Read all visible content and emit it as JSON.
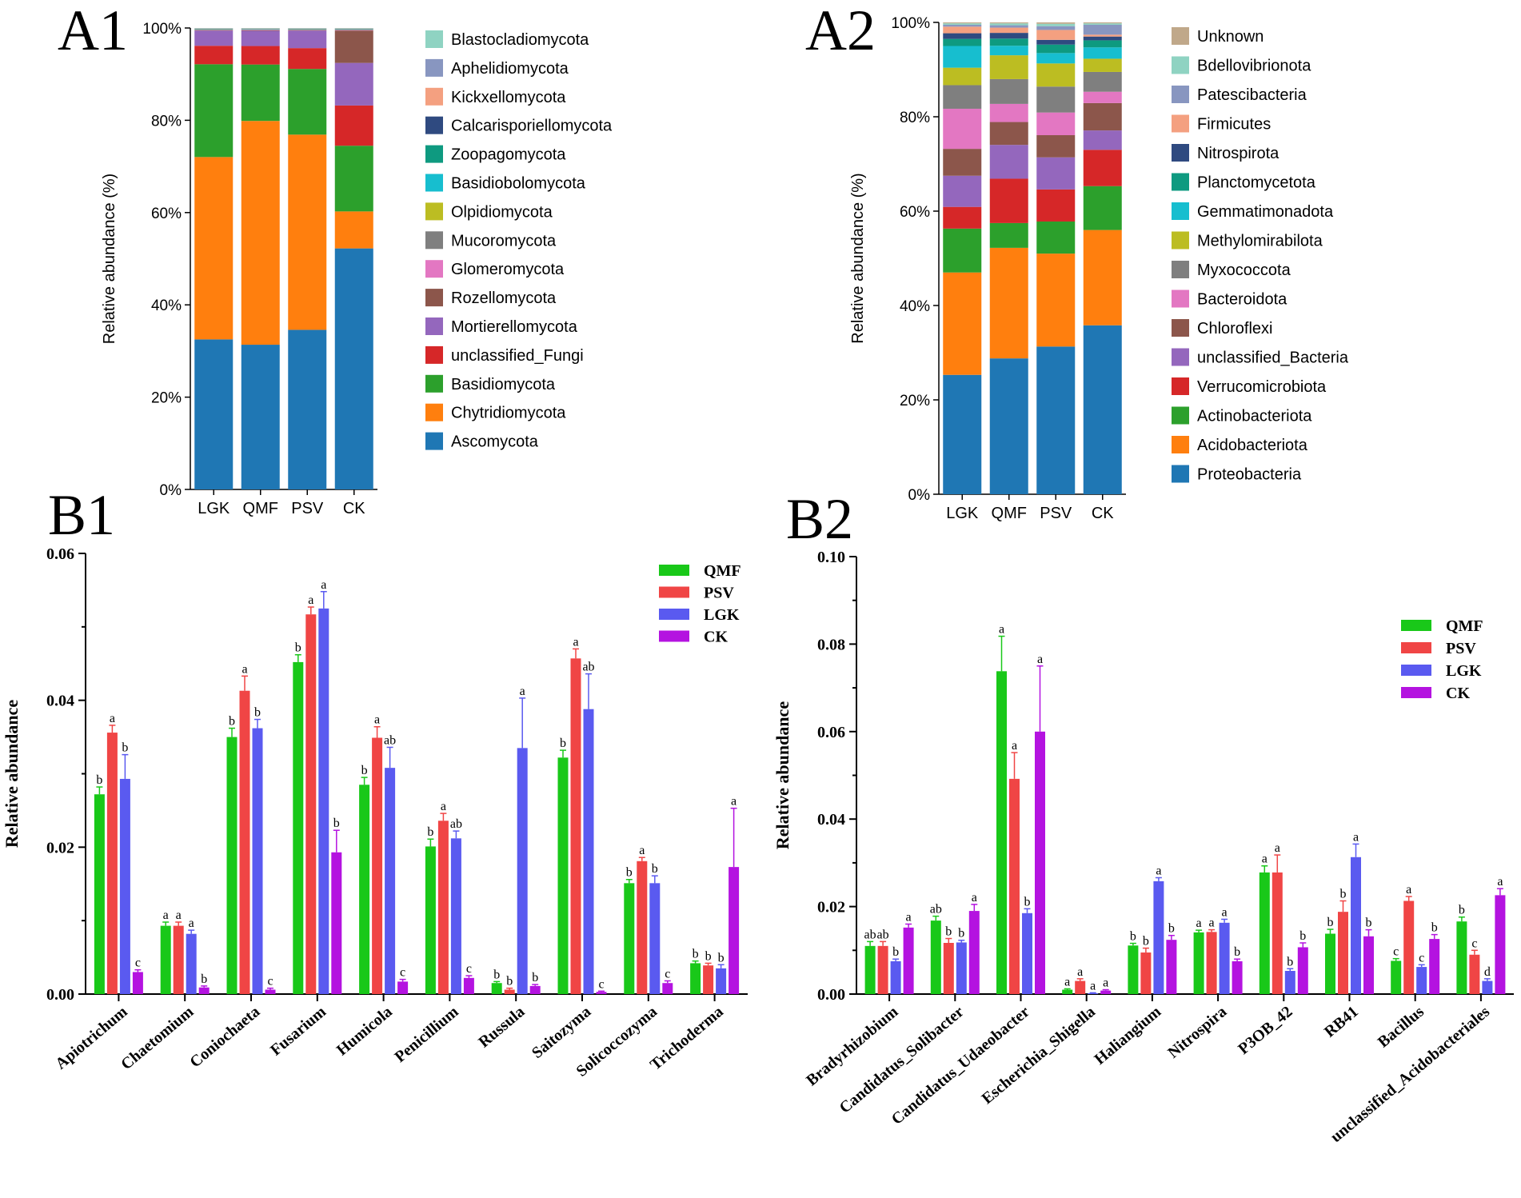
{
  "chart_data": [
    {
      "id": "A1",
      "panel_label": "A1",
      "type": "bar",
      "stacked": true,
      "percent": true,
      "categories": [
        "LGK",
        "QMF",
        "PSV",
        "CK"
      ],
      "ylabel": "Relative abundance (%)",
      "yticks": [
        "0%",
        "20%",
        "40%",
        "60%",
        "80%",
        "100%"
      ],
      "ylim": [
        0,
        100
      ],
      "series": [
        {
          "name": "Ascomycota",
          "color": "#1f77b4",
          "values": [
            32.5,
            31.3,
            34.5,
            52.1
          ]
        },
        {
          "name": "Chytridiomycota",
          "color": "#ff7f0e",
          "values": [
            39.5,
            48.4,
            42.2,
            8.0
          ]
        },
        {
          "name": "Basidiomycota",
          "color": "#2ca02c",
          "values": [
            20.1,
            12.2,
            14.2,
            14.2
          ]
        },
        {
          "name": "unclassified_Fungi",
          "color": "#d62728",
          "values": [
            4.0,
            4.0,
            4.5,
            8.7
          ]
        },
        {
          "name": "Mortierellomycota",
          "color": "#9467bd",
          "values": [
            3.3,
            3.3,
            3.8,
            9.2
          ]
        },
        {
          "name": "Rozellomycota",
          "color": "#8c564b",
          "values": [
            0.1,
            0.1,
            0.1,
            7.0
          ]
        },
        {
          "name": "Glomeromycota",
          "color": "#e377c2",
          "values": [
            0.05,
            0.1,
            0.05,
            0.1
          ]
        },
        {
          "name": "Mucoromycota",
          "color": "#7f7f7f",
          "values": [
            0.05,
            0.05,
            0.05,
            0.1
          ]
        },
        {
          "name": "Olpidiomycota",
          "color": "#bcbd22",
          "values": [
            0.05,
            0.05,
            0.05,
            0.05
          ]
        },
        {
          "name": "Basidiobolomycota",
          "color": "#17becf",
          "values": [
            0.05,
            0.05,
            0.05,
            0.05
          ]
        },
        {
          "name": "Zoopagomycota",
          "color": "#0e9a80",
          "values": [
            0.05,
            0.05,
            0.05,
            0.05
          ]
        },
        {
          "name": "Calcarisporiellomycota",
          "color": "#2f4a80",
          "values": [
            0.05,
            0.05,
            0.05,
            0.05
          ]
        },
        {
          "name": "Kickxellomycota",
          "color": "#f4a080",
          "values": [
            0.05,
            0.05,
            0.05,
            0.05
          ]
        },
        {
          "name": "Aphelidiomycota",
          "color": "#8896c0",
          "values": [
            0.05,
            0.05,
            0.05,
            0.05
          ]
        },
        {
          "name": "Blastocladiomycota",
          "color": "#8fd3c2",
          "values": [
            0.05,
            0.05,
            0.05,
            0.05
          ]
        }
      ]
    },
    {
      "id": "A2",
      "panel_label": "A2",
      "type": "bar",
      "stacked": true,
      "percent": true,
      "categories": [
        "LGK",
        "QMF",
        "PSV",
        "CK"
      ],
      "ylabel": "Relative abundance (%)",
      "yticks": [
        "0%",
        "20%",
        "40%",
        "60%",
        "80%",
        "100%"
      ],
      "ylim": [
        0,
        100
      ],
      "series": [
        {
          "name": "Proteobacteria",
          "color": "#1f77b4",
          "values": [
            25.3,
            28.5,
            31.3,
            35.8
          ]
        },
        {
          "name": "Acidobacteriota",
          "color": "#ff7f0e",
          "values": [
            21.7,
            23.2,
            19.7,
            20.2
          ]
        },
        {
          "name": "Actinobacteriota",
          "color": "#2ca02c",
          "values": [
            9.3,
            5.2,
            6.8,
            9.3
          ]
        },
        {
          "name": "Verrucomicrobiota",
          "color": "#d62728",
          "values": [
            4.6,
            9.3,
            6.8,
            7.7
          ]
        },
        {
          "name": "unclassified_Bacteria",
          "color": "#9467bd",
          "values": [
            6.6,
            7.1,
            6.8,
            4.1
          ]
        },
        {
          "name": "Chloroflexi",
          "color": "#8c564b",
          "values": [
            5.7,
            4.8,
            4.7,
            5.8
          ]
        },
        {
          "name": "Bacteroidota",
          "color": "#e377c2",
          "values": [
            8.5,
            3.8,
            4.8,
            2.4
          ]
        },
        {
          "name": "Myxococcota",
          "color": "#7f7f7f",
          "values": [
            5.0,
            5.2,
            5.5,
            4.2
          ]
        },
        {
          "name": "Methylomirabilota",
          "color": "#bcbd22",
          "values": [
            3.7,
            5.0,
            4.9,
            2.8
          ]
        },
        {
          "name": "Gemmatimonadota",
          "color": "#17becf",
          "values": [
            4.6,
            2.0,
            2.2,
            2.4
          ]
        },
        {
          "name": "Planctomycetota",
          "color": "#0e9a80",
          "values": [
            1.5,
            1.5,
            1.8,
            1.5
          ]
        },
        {
          "name": "Nitrospirota",
          "color": "#2f4a80",
          "values": [
            1.2,
            1.2,
            1.0,
            0.8
          ]
        },
        {
          "name": "Firmicutes",
          "color": "#f4a080",
          "values": [
            1.4,
            1.1,
            2.1,
            0.4
          ]
        },
        {
          "name": "Patescibacteria",
          "color": "#8896c0",
          "values": [
            0.4,
            0.5,
            0.8,
            2.1
          ]
        },
        {
          "name": "Bdellovibrionota",
          "color": "#8fd3c2",
          "values": [
            0.3,
            0.4,
            0.5,
            0.3
          ]
        },
        {
          "name": "Unknown",
          "color": "#c0a88a",
          "values": [
            0.2,
            0.2,
            0.3,
            0.2
          ]
        }
      ]
    },
    {
      "id": "B1",
      "panel_label": "B1",
      "type": "bar",
      "grouped": true,
      "ylabel": "Relative abundance",
      "yticks": [
        "0.00",
        "0.02",
        "0.04",
        "0.06"
      ],
      "ylim": [
        0,
        0.06
      ],
      "categories": [
        "Apiotrichum",
        "Chaetomium",
        "Coniochaeta",
        "Fusarium",
        "Humicola",
        "Penicillium",
        "Russula",
        "Saitozyma",
        "Solicoccozyma",
        "Trichoderma"
      ],
      "series": [
        {
          "name": "QMF",
          "color": "#19c819",
          "values": [
            0.0272,
            0.0093,
            0.035,
            0.0452,
            0.0285,
            0.0201,
            0.0015,
            0.0322,
            0.0151,
            0.0042
          ],
          "errors": [
            0.001,
            0.0005,
            0.0012,
            0.001,
            0.001,
            0.001,
            0.0002,
            0.001,
            0.0005,
            0.0003
          ],
          "letters": [
            "b",
            "a",
            "b",
            "b",
            "b",
            "b",
            "b",
            "b",
            "b",
            "b"
          ]
        },
        {
          "name": "PSV",
          "color": "#f04545",
          "values": [
            0.0356,
            0.0093,
            0.0413,
            0.0517,
            0.0349,
            0.0236,
            0.0006,
            0.0457,
            0.0181,
            0.0039
          ],
          "errors": [
            0.001,
            0.0005,
            0.002,
            0.001,
            0.0015,
            0.001,
            0.0002,
            0.0013,
            0.0005,
            0.0003
          ],
          "letters": [
            "a",
            "a",
            "a",
            "a",
            "a",
            "a",
            "b",
            "a",
            "a",
            "b"
          ]
        },
        {
          "name": "LGK",
          "color": "#5a5af0",
          "values": [
            0.0293,
            0.0082,
            0.0362,
            0.0525,
            0.0308,
            0.0212,
            0.0335,
            0.0388,
            0.0151,
            0.0035
          ],
          "errors": [
            0.0033,
            0.0005,
            0.0012,
            0.0023,
            0.0028,
            0.001,
            0.0068,
            0.0048,
            0.001,
            0.0005
          ],
          "letters": [
            "b",
            "a",
            "b",
            "a",
            "ab",
            "ab",
            "a",
            "ab",
            "b",
            "b"
          ]
        },
        {
          "name": "CK",
          "color": "#b413e0",
          "values": [
            0.003,
            0.0009,
            0.0006,
            0.0193,
            0.0017,
            0.0022,
            0.0011,
            0.0003,
            0.0015,
            0.0173
          ],
          "errors": [
            0.0003,
            0.0002,
            0.0002,
            0.003,
            0.0003,
            0.0003,
            0.0002,
            0.0001,
            0.0003,
            0.008
          ],
          "letters": [
            "c",
            "b",
            "c",
            "b",
            "c",
            "c",
            "b",
            "c",
            "c",
            "a"
          ]
        }
      ]
    },
    {
      "id": "B2",
      "panel_label": "B2",
      "type": "bar",
      "grouped": true,
      "ylabel": "Relative abundance",
      "yticks": [
        "0.00",
        "0.02",
        "0.04",
        "0.06",
        "0.08",
        "0.10"
      ],
      "ylim": [
        0,
        0.1
      ],
      "categories": [
        "Bradyrhizobium",
        "Candidatus_Solibacter",
        "Candidatus_Udaeobacter",
        "Escherichia_Shigella",
        "Haliangium",
        "Nitrospira",
        "P3OB_42",
        "RB41",
        "Bacillus",
        "unclassified_Acidobacteriales"
      ],
      "series": [
        {
          "name": "QMF",
          "color": "#19c819",
          "values": [
            0.011,
            0.0168,
            0.0738,
            0.001,
            0.0111,
            0.0141,
            0.0278,
            0.0138,
            0.0076,
            0.0166
          ],
          "errors": [
            0.001,
            0.001,
            0.008,
            0.0002,
            0.0005,
            0.0005,
            0.0015,
            0.001,
            0.0005,
            0.001
          ],
          "letters": [
            "ab",
            "ab",
            "a",
            "a",
            "b",
            "a",
            "a",
            "b",
            "c",
            "b"
          ]
        },
        {
          "name": "PSV",
          "color": "#f04545",
          "values": [
            0.011,
            0.0117,
            0.0492,
            0.003,
            0.0095,
            0.0142,
            0.0278,
            0.0188,
            0.0213,
            0.009
          ],
          "errors": [
            0.001,
            0.001,
            0.006,
            0.0005,
            0.001,
            0.0005,
            0.004,
            0.0025,
            0.001,
            0.001
          ],
          "letters": [
            "ab",
            "b",
            "a",
            "a",
            "b",
            "a",
            "a",
            "b",
            "a",
            "c"
          ]
        },
        {
          "name": "LGK",
          "color": "#5a5af0",
          "values": [
            0.0075,
            0.0118,
            0.0185,
            0.0002,
            0.0258,
            0.0163,
            0.0053,
            0.0313,
            0.0062,
            0.003
          ],
          "errors": [
            0.0005,
            0.0005,
            0.001,
            0.0001,
            0.0008,
            0.0008,
            0.0005,
            0.003,
            0.0005,
            0.0005
          ],
          "letters": [
            "b",
            "b",
            "b",
            "a",
            "a",
            "a",
            "b",
            "a",
            "c",
            "d"
          ]
        },
        {
          "name": "CK",
          "color": "#b413e0",
          "values": [
            0.0152,
            0.019,
            0.06,
            0.0008,
            0.0124,
            0.0075,
            0.0107,
            0.0132,
            0.0126,
            0.0226
          ],
          "errors": [
            0.0008,
            0.0015,
            0.015,
            0.0002,
            0.001,
            0.0005,
            0.001,
            0.0015,
            0.001,
            0.0015
          ],
          "letters": [
            "a",
            "a",
            "a",
            "a",
            "b",
            "b",
            "b",
            "b",
            "b",
            "a"
          ]
        }
      ]
    }
  ]
}
